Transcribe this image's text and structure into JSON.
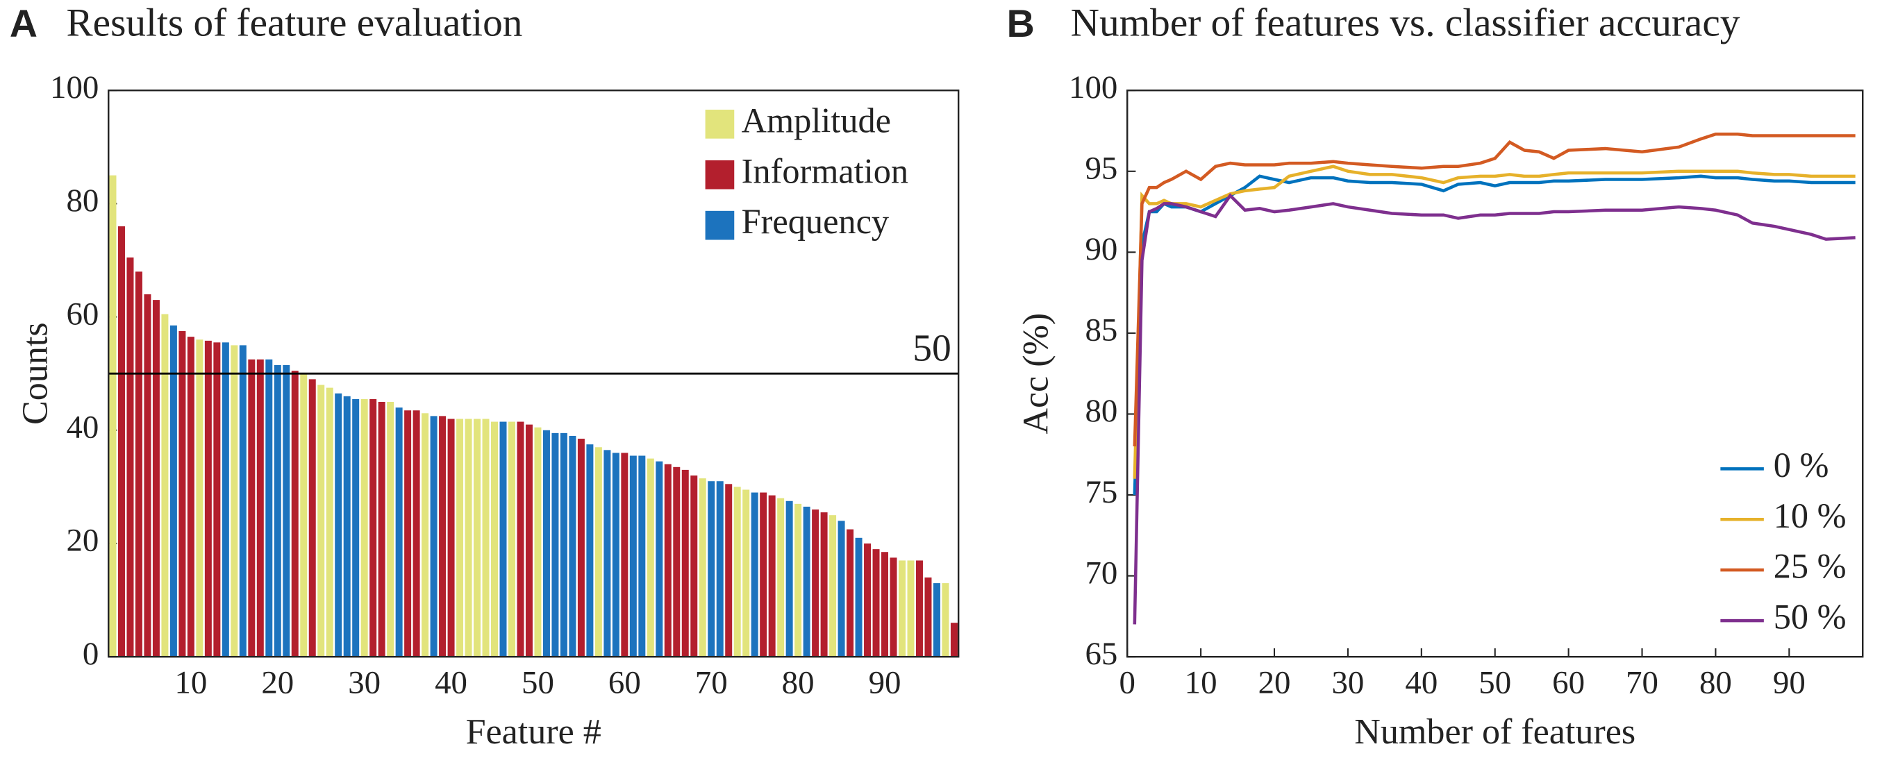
{
  "chart_data": [
    {
      "type": "bar",
      "label": "A",
      "title": "Results of feature evaluation",
      "xlabel": "Feature #",
      "ylabel": "Counts",
      "x": [
        1,
        2,
        3,
        4,
        5,
        6,
        7,
        8,
        9,
        10,
        11,
        12,
        13,
        14,
        15,
        16,
        17,
        18,
        19,
        20,
        21,
        22,
        23,
        24,
        25,
        26,
        27,
        28,
        29,
        30,
        31,
        32,
        33,
        34,
        35,
        36,
        37,
        38,
        39,
        40,
        41,
        42,
        43,
        44,
        45,
        46,
        47,
        48,
        49,
        50,
        51,
        52,
        53,
        54,
        55,
        56,
        57,
        58,
        59,
        60,
        61,
        62,
        63,
        64,
        65,
        66,
        67,
        68,
        69,
        70,
        71,
        72,
        73,
        74,
        75,
        76,
        77,
        78,
        79,
        80,
        81,
        82,
        83,
        84,
        85,
        86,
        87,
        88,
        89,
        90,
        91,
        92,
        93,
        94,
        95,
        96,
        97,
        98
      ],
      "series": [
        {
          "name": "Amplitude",
          "color": "#e2e47c",
          "values": [
            85,
            null,
            null,
            null,
            null,
            null,
            60.5,
            null,
            null,
            null,
            56,
            null,
            null,
            null,
            55,
            null,
            null,
            null,
            null,
            null,
            null,
            null,
            50,
            null,
            48,
            47.5,
            null,
            null,
            null,
            45.5,
            null,
            null,
            45,
            null,
            null,
            null,
            43,
            null,
            null,
            null,
            42,
            42,
            42,
            42,
            41.5,
            null,
            41.5,
            null,
            null,
            40.5,
            null,
            null,
            null,
            null,
            null,
            null,
            37,
            null,
            null,
            null,
            null,
            null,
            35,
            null,
            null,
            null,
            null,
            null,
            31.5,
            null,
            null,
            null,
            30,
            29.5,
            null,
            null,
            null,
            28,
            null,
            27,
            null,
            null,
            null,
            25,
            null,
            null,
            null,
            null,
            null,
            null,
            null,
            17,
            17,
            null,
            null,
            null,
            13,
            null
          ]
        },
        {
          "name": "Information",
          "color": "#b31f2d",
          "values": [
            null,
            76,
            70.5,
            68,
            64,
            63,
            null,
            null,
            57.5,
            56.5,
            null,
            55.8,
            55.5,
            null,
            null,
            null,
            52.5,
            52.5,
            null,
            null,
            null,
            50.5,
            null,
            49,
            null,
            null,
            null,
            null,
            null,
            null,
            45.5,
            45,
            null,
            null,
            43.5,
            43.5,
            null,
            null,
            42.5,
            42,
            null,
            null,
            null,
            null,
            null,
            null,
            null,
            41.5,
            41,
            null,
            null,
            null,
            null,
            null,
            38.5,
            null,
            null,
            null,
            null,
            36,
            null,
            null,
            null,
            null,
            34,
            33.5,
            33,
            32,
            null,
            null,
            null,
            30.5,
            null,
            null,
            null,
            29,
            28.5,
            null,
            null,
            null,
            null,
            26,
            25.5,
            null,
            null,
            22.5,
            null,
            20,
            19,
            18.5,
            17.5,
            null,
            null,
            17,
            14,
            null,
            null,
            6
          ]
        },
        {
          "name": "Frequency",
          "color": "#1c73be",
          "values": [
            null,
            null,
            null,
            null,
            null,
            null,
            null,
            58.5,
            null,
            null,
            null,
            null,
            null,
            55.5,
            null,
            55,
            null,
            null,
            52.5,
            51.5,
            51.5,
            null,
            null,
            null,
            null,
            null,
            46.5,
            46,
            45.5,
            null,
            null,
            null,
            null,
            44,
            null,
            null,
            null,
            42.5,
            null,
            null,
            null,
            null,
            null,
            null,
            null,
            41.5,
            null,
            null,
            null,
            null,
            40,
            39.5,
            39.5,
            39,
            null,
            37.5,
            null,
            36.5,
            36,
            null,
            35.5,
            35.5,
            null,
            34.5,
            null,
            null,
            null,
            null,
            null,
            31,
            31,
            null,
            null,
            null,
            29,
            null,
            null,
            null,
            27.5,
            null,
            26.5,
            null,
            null,
            null,
            24,
            null,
            21,
            null,
            null,
            null,
            null,
            null,
            null,
            null,
            null,
            13,
            null,
            null
          ]
        }
      ],
      "reference_line": 50,
      "xlim": [
        0.5,
        98.5
      ],
      "xticks": [
        10,
        20,
        30,
        40,
        50,
        60,
        70,
        80,
        90
      ],
      "ylim": [
        0,
        100
      ],
      "yticks": [
        0,
        20,
        40,
        60,
        80,
        100
      ],
      "legend": "upper right"
    },
    {
      "type": "line",
      "label": "B",
      "title": "Number of features vs. classifier accuracy",
      "xlabel": "Number of features",
      "ylabel": "Acc (%)",
      "x": [
        1,
        2,
        3,
        4,
        5,
        6,
        8,
        10,
        12,
        14,
        16,
        18,
        20,
        22,
        25,
        28,
        30,
        33,
        36,
        40,
        43,
        45,
        48,
        50,
        52,
        54,
        56,
        58,
        60,
        65,
        70,
        75,
        78,
        80,
        83,
        85,
        88,
        90,
        93,
        95,
        99
      ],
      "series": [
        {
          "name": "0 %",
          "color": "#0072bd",
          "values": [
            75,
            90.5,
            92.5,
            92.5,
            93,
            92.8,
            92.8,
            92.5,
            93,
            93.5,
            94,
            94.7,
            94.5,
            94.3,
            94.6,
            94.6,
            94.4,
            94.3,
            94.3,
            94.2,
            93.8,
            94.2,
            94.3,
            94.1,
            94.3,
            94.3,
            94.3,
            94.4,
            94.4,
            94.5,
            94.5,
            94.6,
            94.7,
            94.6,
            94.6,
            94.5,
            94.4,
            94.4,
            94.3,
            94.3,
            94.3
          ]
        },
        {
          "name": "10 %",
          "color": "#e6b12a",
          "values": [
            76,
            93.5,
            93,
            93,
            93.2,
            93,
            93,
            92.8,
            93.2,
            93.6,
            93.8,
            93.9,
            94,
            94.7,
            95,
            95.3,
            95,
            94.8,
            94.8,
            94.6,
            94.3,
            94.6,
            94.7,
            94.7,
            94.8,
            94.7,
            94.7,
            94.8,
            94.9,
            94.9,
            94.9,
            95,
            95,
            95,
            95,
            94.9,
            94.8,
            94.8,
            94.7,
            94.7,
            94.7
          ]
        },
        {
          "name": "25 %",
          "color": "#d35a22",
          "values": [
            78,
            93,
            94,
            94,
            94.3,
            94.5,
            95,
            94.5,
            95.3,
            95.5,
            95.4,
            95.4,
            95.4,
            95.5,
            95.5,
            95.6,
            95.5,
            95.4,
            95.3,
            95.2,
            95.3,
            95.3,
            95.5,
            95.8,
            96.8,
            96.3,
            96.2,
            95.8,
            96.3,
            96.4,
            96.2,
            96.5,
            97,
            97.3,
            97.3,
            97.2,
            97.2,
            97.2,
            97.2,
            97.2,
            97.2
          ]
        },
        {
          "name": "50 %",
          "color": "#7e2f8e",
          "values": [
            67,
            89.5,
            92.5,
            92.7,
            93,
            93,
            92.8,
            92.5,
            92.2,
            93.5,
            92.6,
            92.7,
            92.5,
            92.6,
            92.8,
            93,
            92.8,
            92.6,
            92.4,
            92.3,
            92.3,
            92.1,
            92.3,
            92.3,
            92.4,
            92.4,
            92.4,
            92.5,
            92.5,
            92.6,
            92.6,
            92.8,
            92.7,
            92.6,
            92.3,
            91.8,
            91.6,
            91.4,
            91.1,
            90.8,
            90.9
          ]
        }
      ],
      "xlim": [
        0,
        100
      ],
      "xticks": [
        0,
        10,
        20,
        30,
        40,
        50,
        60,
        70,
        80,
        90
      ],
      "ylim": [
        65,
        100
      ],
      "yticks": [
        65,
        70,
        75,
        80,
        85,
        90,
        95,
        100
      ],
      "legend": "lower right"
    }
  ]
}
